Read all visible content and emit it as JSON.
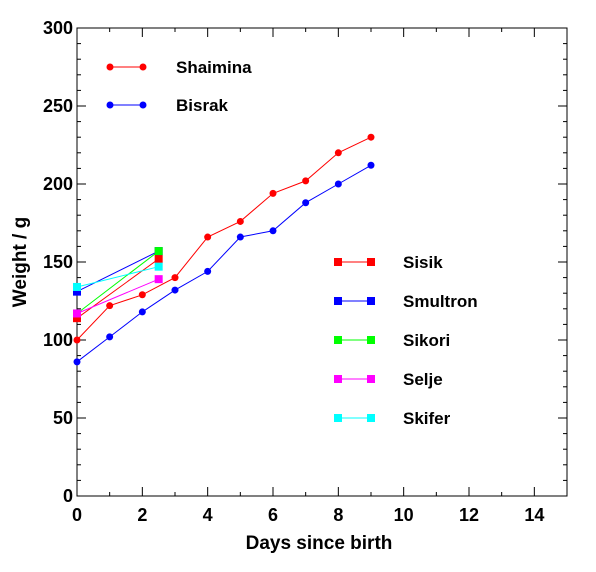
{
  "chart_data": {
    "type": "line",
    "xlabel": "Days since birth",
    "ylabel": "Weight / g",
    "xlim": [
      0,
      15
    ],
    "ylim": [
      0,
      300
    ],
    "x_ticks": [
      "0",
      "2",
      "4",
      "6",
      "8",
      "10",
      "12",
      "14"
    ],
    "y_ticks": [
      "0",
      "50",
      "100",
      "150",
      "200",
      "250",
      "300"
    ],
    "grid": false,
    "series": [
      {
        "name": "Shaimina",
        "color": "#ff0000",
        "marker": "circle",
        "x": [
          0,
          1,
          2,
          3,
          4,
          5,
          6,
          7,
          8,
          9
        ],
        "y": [
          100,
          122,
          129,
          140,
          166,
          176,
          194,
          202,
          220,
          230
        ]
      },
      {
        "name": "Bisrak",
        "color": "#0000ff",
        "marker": "circle",
        "x": [
          0,
          1,
          2,
          3,
          4,
          5,
          6,
          7,
          8,
          9
        ],
        "y": [
          86,
          102,
          118,
          132,
          144,
          166,
          170,
          188,
          200,
          212
        ]
      },
      {
        "name": "Sisik",
        "color": "#ff0000",
        "marker": "square",
        "x": [
          0,
          2.5
        ],
        "y": [
          114,
          152
        ]
      },
      {
        "name": "Smultron",
        "color": "#0000ff",
        "marker": "square",
        "x": [
          0,
          2.5
        ],
        "y": [
          131,
          157
        ]
      },
      {
        "name": "Sikori",
        "color": "#00ff00",
        "marker": "square",
        "x": [
          0,
          2.5
        ],
        "y": [
          117,
          157
        ]
      },
      {
        "name": "Selje",
        "color": "#ff00ff",
        "marker": "square",
        "x": [
          0,
          2.5
        ],
        "y": [
          117,
          139
        ]
      },
      {
        "name": "Skifer",
        "color": "#00ffff",
        "marker": "square",
        "x": [
          0,
          2.5
        ],
        "y": [
          134,
          147
        ]
      }
    ]
  }
}
